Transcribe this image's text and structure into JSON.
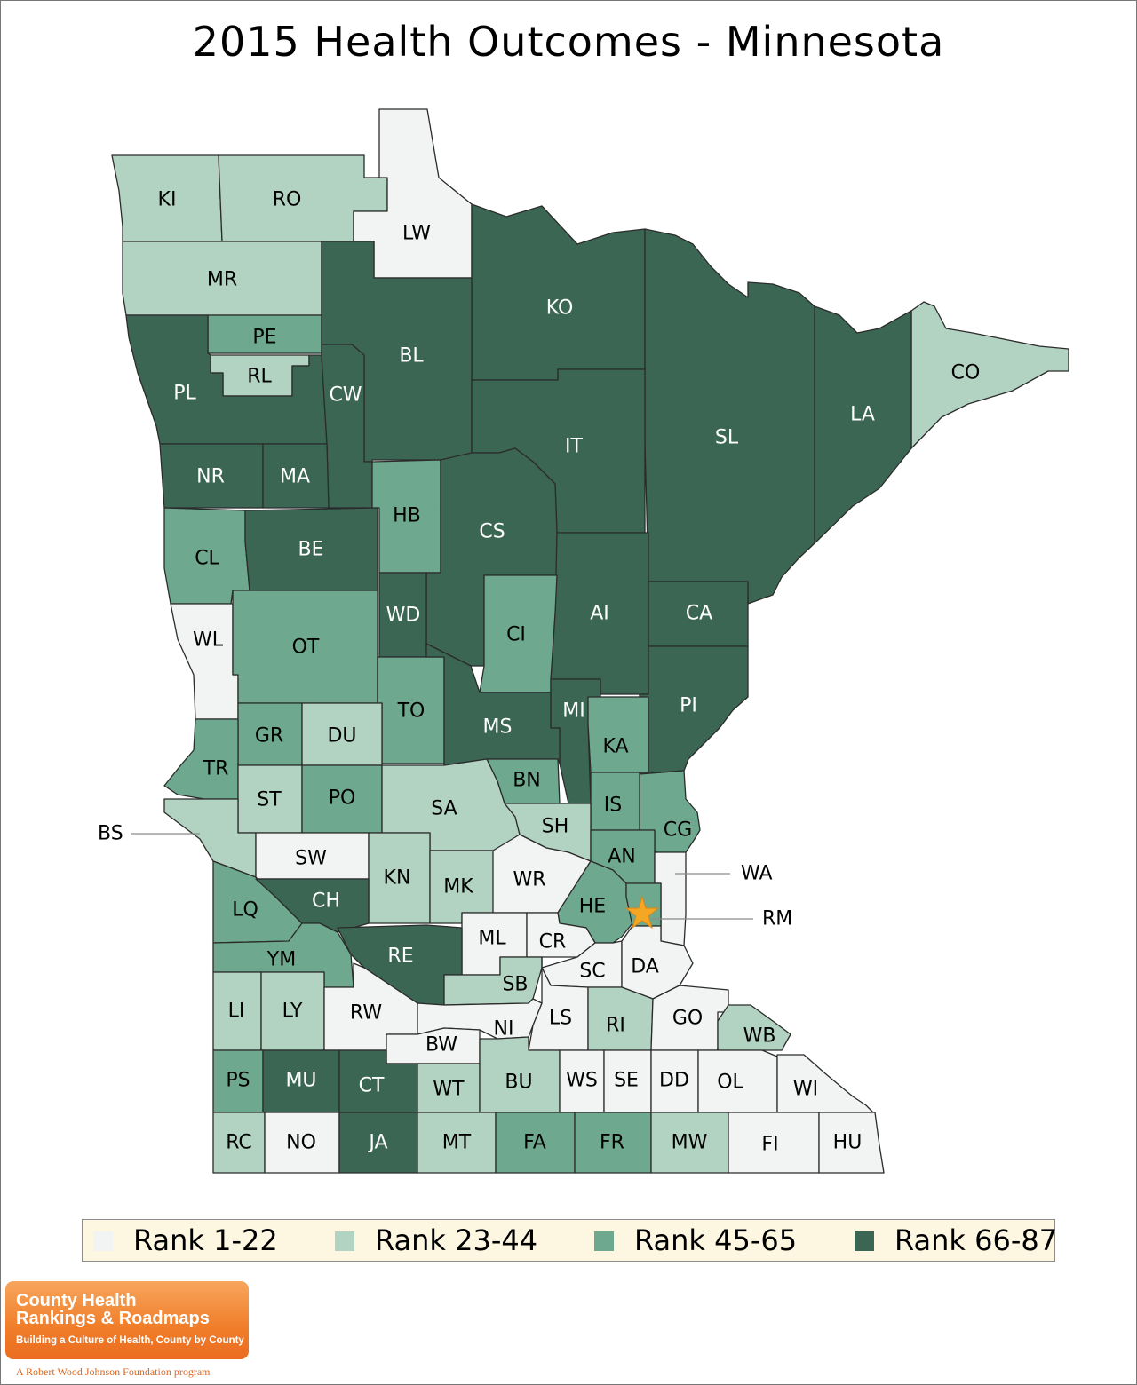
{
  "title": "2015 Health Outcomes - Minnesota",
  "colors": {
    "rank_1_22": "#f1f4f2",
    "rank_23_44": "#b2d2c2",
    "rank_45_65": "#6ea98f",
    "rank_66_87": "#3b6654",
    "label_on_dark": "#ffffff",
    "label_on_light": "#000000",
    "star": "#f5a623",
    "legend_background": "#fdf7e2",
    "logo_orange": "#f07d2a"
  },
  "legend": [
    {
      "label": "Rank 1-22",
      "rank_class": 1
    },
    {
      "label": "Rank 23-44",
      "rank_class": 2
    },
    {
      "label": "Rank 45-65",
      "rank_class": 3
    },
    {
      "label": "Rank 66-87",
      "rank_class": 4
    }
  ],
  "counties": [
    {
      "abbr": "KI",
      "rank_class": 2
    },
    {
      "abbr": "RO",
      "rank_class": 2
    },
    {
      "abbr": "LW",
      "rank_class": 1
    },
    {
      "abbr": "MR",
      "rank_class": 2
    },
    {
      "abbr": "KO",
      "rank_class": 4
    },
    {
      "abbr": "PE",
      "rank_class": 3
    },
    {
      "abbr": "RL",
      "rank_class": 2
    },
    {
      "abbr": "BL",
      "rank_class": 4
    },
    {
      "abbr": "CO",
      "rank_class": 2
    },
    {
      "abbr": "PL",
      "rank_class": 4
    },
    {
      "abbr": "CW",
      "rank_class": 4
    },
    {
      "abbr": "LA",
      "rank_class": 4
    },
    {
      "abbr": "SL",
      "rank_class": 4
    },
    {
      "abbr": "IT",
      "rank_class": 4
    },
    {
      "abbr": "NR",
      "rank_class": 4
    },
    {
      "abbr": "MA",
      "rank_class": 4
    },
    {
      "abbr": "HB",
      "rank_class": 3
    },
    {
      "abbr": "CS",
      "rank_class": 4
    },
    {
      "abbr": "CL",
      "rank_class": 3
    },
    {
      "abbr": "BE",
      "rank_class": 4
    },
    {
      "abbr": "WD",
      "rank_class": 4
    },
    {
      "abbr": "AI",
      "rank_class": 4
    },
    {
      "abbr": "CA",
      "rank_class": 4
    },
    {
      "abbr": "WL",
      "rank_class": 1
    },
    {
      "abbr": "OT",
      "rank_class": 3
    },
    {
      "abbr": "CI",
      "rank_class": 3
    },
    {
      "abbr": "PI",
      "rank_class": 4
    },
    {
      "abbr": "TO",
      "rank_class": 3
    },
    {
      "abbr": "MI",
      "rank_class": 4
    },
    {
      "abbr": "GR",
      "rank_class": 3
    },
    {
      "abbr": "DU",
      "rank_class": 2
    },
    {
      "abbr": "MS",
      "rank_class": 4
    },
    {
      "abbr": "KA",
      "rank_class": 3
    },
    {
      "abbr": "TR",
      "rank_class": 3
    },
    {
      "abbr": "BN",
      "rank_class": 3
    },
    {
      "abbr": "ST",
      "rank_class": 2
    },
    {
      "abbr": "PO",
      "rank_class": 3
    },
    {
      "abbr": "SA",
      "rank_class": 2
    },
    {
      "abbr": "IS",
      "rank_class": 3
    },
    {
      "abbr": "SH",
      "rank_class": 2
    },
    {
      "abbr": "CG",
      "rank_class": 3
    },
    {
      "abbr": "BS",
      "rank_class": 2
    },
    {
      "abbr": "SW",
      "rank_class": 1
    },
    {
      "abbr": "AN",
      "rank_class": 3
    },
    {
      "abbr": "KN",
      "rank_class": 2
    },
    {
      "abbr": "MK",
      "rank_class": 2
    },
    {
      "abbr": "WR",
      "rank_class": 1
    },
    {
      "abbr": "WA",
      "rank_class": 1
    },
    {
      "abbr": "LQ",
      "rank_class": 3
    },
    {
      "abbr": "CH",
      "rank_class": 4
    },
    {
      "abbr": "HE",
      "rank_class": 3
    },
    {
      "abbr": "RM",
      "rank_class": 3
    },
    {
      "abbr": "ML",
      "rank_class": 1
    },
    {
      "abbr": "CR",
      "rank_class": 1
    },
    {
      "abbr": "RE",
      "rank_class": 4
    },
    {
      "abbr": "YM",
      "rank_class": 3
    },
    {
      "abbr": "SC",
      "rank_class": 1
    },
    {
      "abbr": "DA",
      "rank_class": 1
    },
    {
      "abbr": "SB",
      "rank_class": 2
    },
    {
      "abbr": "LI",
      "rank_class": 2
    },
    {
      "abbr": "LY",
      "rank_class": 2
    },
    {
      "abbr": "RW",
      "rank_class": 1
    },
    {
      "abbr": "NI",
      "rank_class": 1
    },
    {
      "abbr": "LS",
      "rank_class": 1
    },
    {
      "abbr": "RI",
      "rank_class": 2
    },
    {
      "abbr": "GO",
      "rank_class": 1
    },
    {
      "abbr": "WB",
      "rank_class": 2
    },
    {
      "abbr": "BW",
      "rank_class": 1
    },
    {
      "abbr": "PS",
      "rank_class": 3
    },
    {
      "abbr": "MU",
      "rank_class": 4
    },
    {
      "abbr": "CT",
      "rank_class": 4
    },
    {
      "abbr": "WT",
      "rank_class": 2
    },
    {
      "abbr": "BU",
      "rank_class": 2
    },
    {
      "abbr": "WS",
      "rank_class": 1
    },
    {
      "abbr": "SE",
      "rank_class": 1
    },
    {
      "abbr": "DD",
      "rank_class": 1
    },
    {
      "abbr": "OL",
      "rank_class": 1
    },
    {
      "abbr": "WI",
      "rank_class": 1
    },
    {
      "abbr": "RC",
      "rank_class": 2
    },
    {
      "abbr": "NO",
      "rank_class": 1
    },
    {
      "abbr": "JA",
      "rank_class": 4
    },
    {
      "abbr": "MT",
      "rank_class": 2
    },
    {
      "abbr": "FA",
      "rank_class": 3
    },
    {
      "abbr": "FR",
      "rank_class": 3
    },
    {
      "abbr": "MW",
      "rank_class": 2
    },
    {
      "abbr": "FI",
      "rank_class": 1
    },
    {
      "abbr": "HU",
      "rank_class": 1
    }
  ],
  "callouts": [
    "BS",
    "WA",
    "RM"
  ],
  "logo": {
    "line1": "County Health",
    "line2": "Rankings & Roadmaps",
    "tagline": "Building a Culture of Health, County by County",
    "footer": "A Robert Wood Johnson Foundation program"
  }
}
